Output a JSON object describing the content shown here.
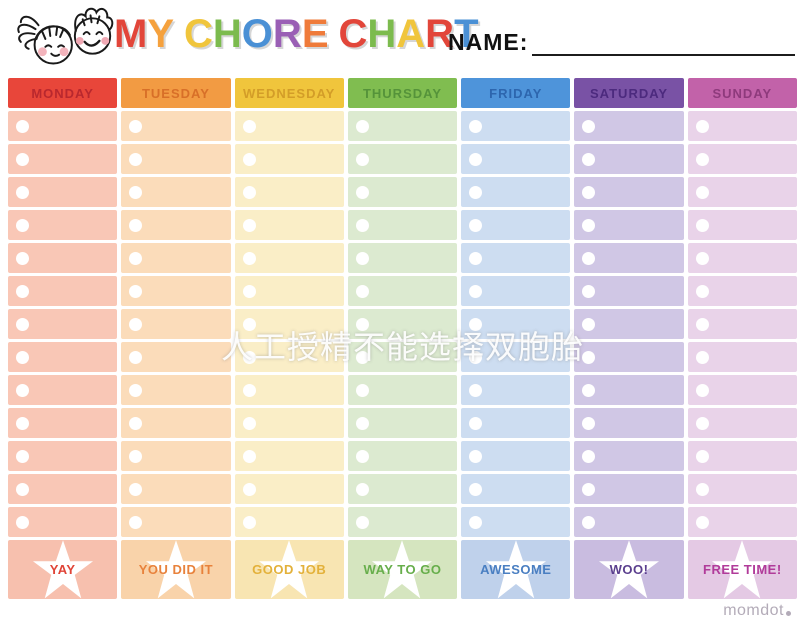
{
  "header": {
    "title": "MY CHORE CHART",
    "title_letters": [
      {
        "ch": "M",
        "color": "#e2463a"
      },
      {
        "ch": "Y",
        "color": "#f5a13d"
      },
      {
        "ch": " "
      },
      {
        "ch": "C",
        "color": "#f0c53c"
      },
      {
        "ch": "H",
        "color": "#7cbb4e"
      },
      {
        "ch": "O",
        "color": "#4a90d5"
      },
      {
        "ch": "R",
        "color": "#9a5fb5"
      },
      {
        "ch": "E",
        "color": "#ef7b3a"
      },
      {
        "ch": " "
      },
      {
        "ch": "C",
        "color": "#e2463a"
      },
      {
        "ch": "H",
        "color": "#7cbb4e"
      },
      {
        "ch": "A",
        "color": "#f0c53c"
      },
      {
        "ch": "R",
        "color": "#e2463a"
      },
      {
        "ch": "T",
        "color": "#4a90d5"
      }
    ],
    "name_label": "NAME:",
    "name_value": ""
  },
  "grid": {
    "rows_per_day": 13,
    "days": [
      {
        "label": "MONDAY",
        "header_bg": "#e8463a",
        "header_text": "#b9282e",
        "row_bg": "#f9c7b6",
        "footer_bg": "#f7c0ae",
        "footer_label": "YAY",
        "footer_color": "#e04437"
      },
      {
        "label": "TUESDAY",
        "header_bg": "#f29b43",
        "header_text": "#d86f28",
        "row_bg": "#fbdcba",
        "footer_bg": "#f9d3aa",
        "footer_label": "YOU DID IT",
        "footer_color": "#e8823c"
      },
      {
        "label": "WEDNESDAY",
        "header_bg": "#f0c53c",
        "header_text": "#d39d28",
        "row_bg": "#faeec7",
        "footer_bg": "#f8e5b2",
        "footer_label": "GOOD JOB",
        "footer_color": "#e3b13a"
      },
      {
        "label": "THURSDAY",
        "header_bg": "#80bd50",
        "header_text": "#55933a",
        "row_bg": "#dcead0",
        "footer_bg": "#d5e5bf",
        "footer_label": "WAY TO GO",
        "footer_color": "#67ae4b"
      },
      {
        "label": "FRIDAY",
        "header_bg": "#4e94da",
        "header_text": "#2d66ae",
        "row_bg": "#cdddf1",
        "footer_bg": "#bfd1eb",
        "footer_label": "AWESOME",
        "footer_color": "#4a7fc2"
      },
      {
        "label": "SATURDAY",
        "header_bg": "#7952a5",
        "header_text": "#4c2a7e",
        "row_bg": "#d0c7e5",
        "footer_bg": "#c9bce0",
        "footer_label": "WOO!",
        "footer_color": "#5b3f8e"
      },
      {
        "label": "SUNDAY",
        "header_bg": "#c262a9",
        "header_text": "#8e3a7c",
        "row_bg": "#e9d3e9",
        "footer_bg": "#e4c9e4",
        "footer_label": "FREE TIME!",
        "footer_color": "#b13b9a"
      }
    ]
  },
  "watermark": {
    "text": "人工授精不能选择双胞胎"
  },
  "brand": {
    "name": "momdot"
  }
}
